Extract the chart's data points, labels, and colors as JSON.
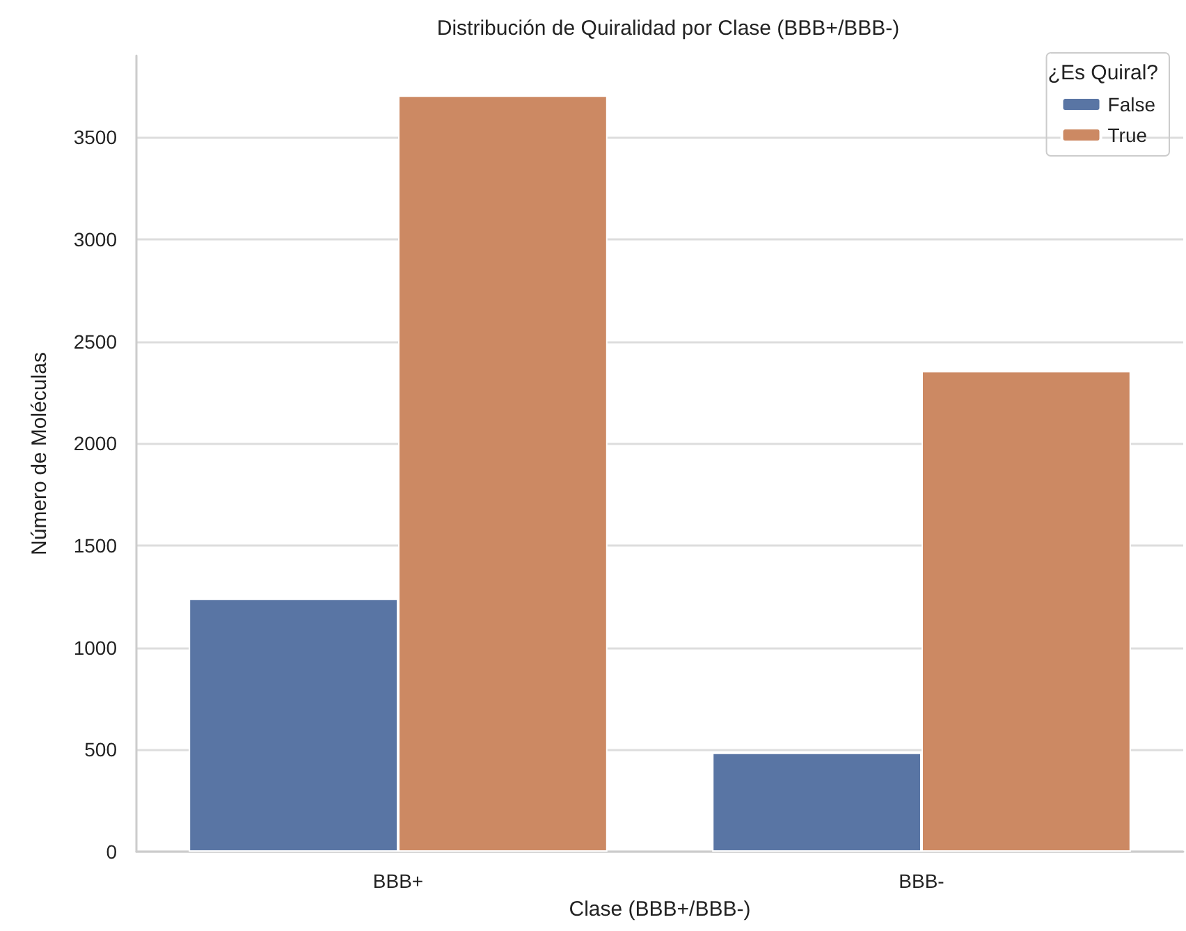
{
  "chart_data": {
    "type": "bar",
    "title": "Distribución de Quiralidad por Clase (BBB+/BBB-)",
    "xlabel": "Clase (BBB+/BBB-)",
    "ylabel": "Número de Moléculas",
    "legend_title": "¿Es Quiral?",
    "categories": [
      "BBB+",
      "BBB-"
    ],
    "series": [
      {
        "name": "False",
        "color": "#5975a4",
        "values": [
          1240,
          485
        ]
      },
      {
        "name": "True",
        "color": "#cc8963",
        "values": [
          3705,
          2355
        ]
      }
    ],
    "ylim": [
      0,
      3900
    ],
    "yticks": [
      0,
      500,
      1000,
      1500,
      2000,
      2500,
      3000,
      3500
    ],
    "grid": "y",
    "legend": "top right"
  }
}
